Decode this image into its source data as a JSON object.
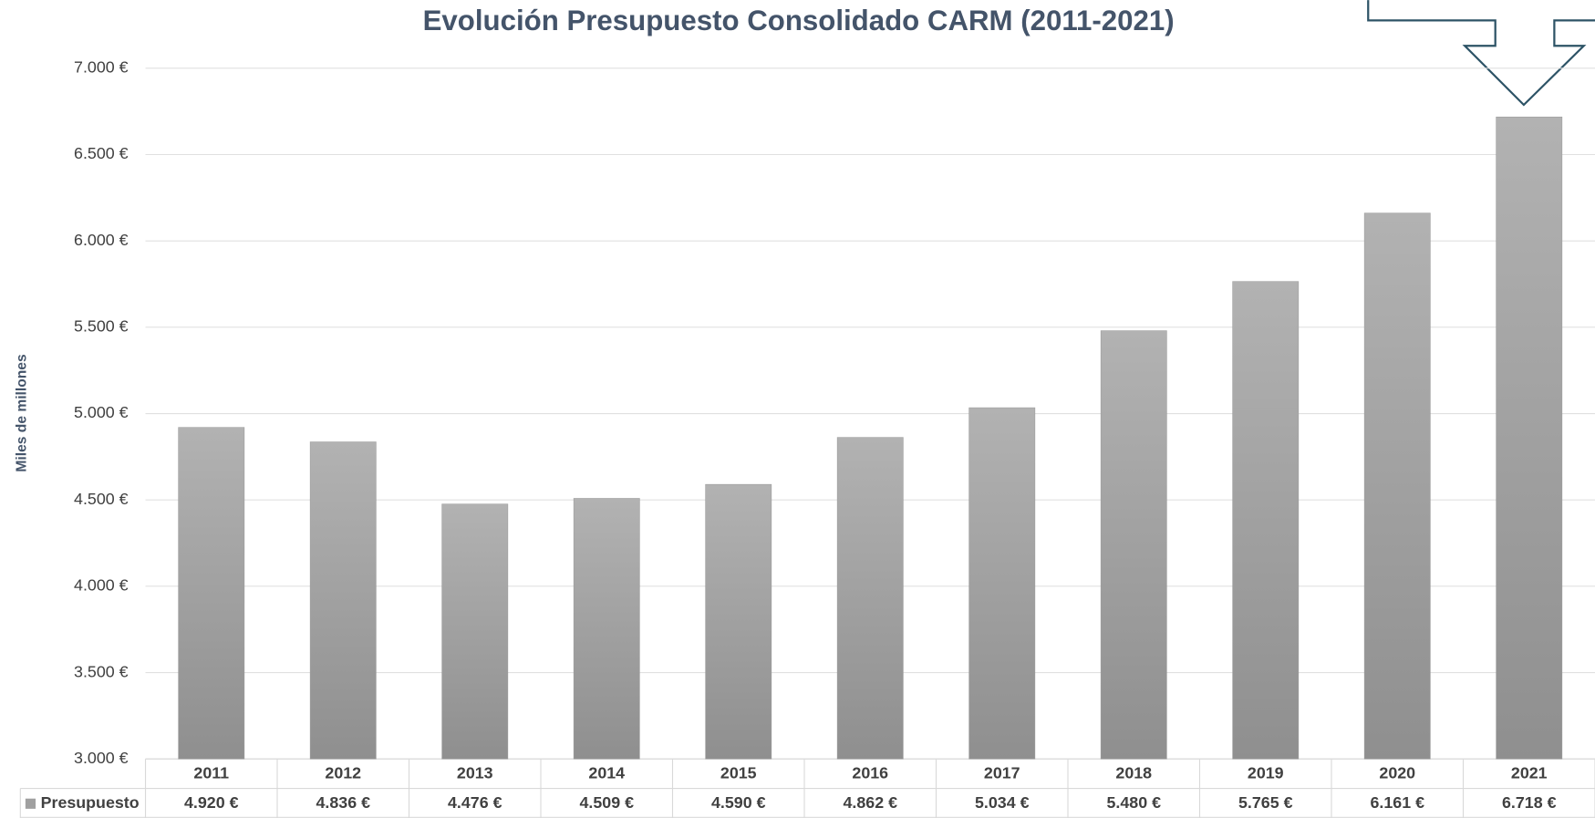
{
  "chart_data": {
    "type": "bar",
    "title": "Evolución Presupuesto Consolidado CARM (2011-2021)",
    "ylabel": "Miles de millones",
    "categories": [
      "2011",
      "2012",
      "2013",
      "2014",
      "2015",
      "2016",
      "2017",
      "2018",
      "2019",
      "2020",
      "2021"
    ],
    "series": [
      {
        "name": "Presupuesto",
        "color": "#a0a0a0",
        "values": [
          4920,
          4836,
          4476,
          4509,
          4590,
          4862,
          5034,
          5480,
          5765,
          6161,
          6718
        ],
        "value_labels": [
          "4.920 €",
          "4.836 €",
          "4.476 €",
          "4.509 €",
          "4.590 €",
          "4.862 €",
          "5.034 €",
          "5.480 €",
          "5.765 €",
          "6.161 €",
          "6.718 €"
        ]
      }
    ],
    "ylim": [
      3000,
      7000
    ],
    "yticks": [
      {
        "value": 3000,
        "label": "3.000 €"
      },
      {
        "value": 3500,
        "label": "3.500 €"
      },
      {
        "value": 4000,
        "label": "4.000 €"
      },
      {
        "value": 4500,
        "label": "4.500 €"
      },
      {
        "value": 5000,
        "label": "5.000 €"
      },
      {
        "value": 5500,
        "label": "5.500 €"
      },
      {
        "value": 6000,
        "label": "6.000 €"
      },
      {
        "value": 6500,
        "label": "6.500 €"
      },
      {
        "value": 7000,
        "label": "7.000 €"
      }
    ],
    "grid": true
  }
}
